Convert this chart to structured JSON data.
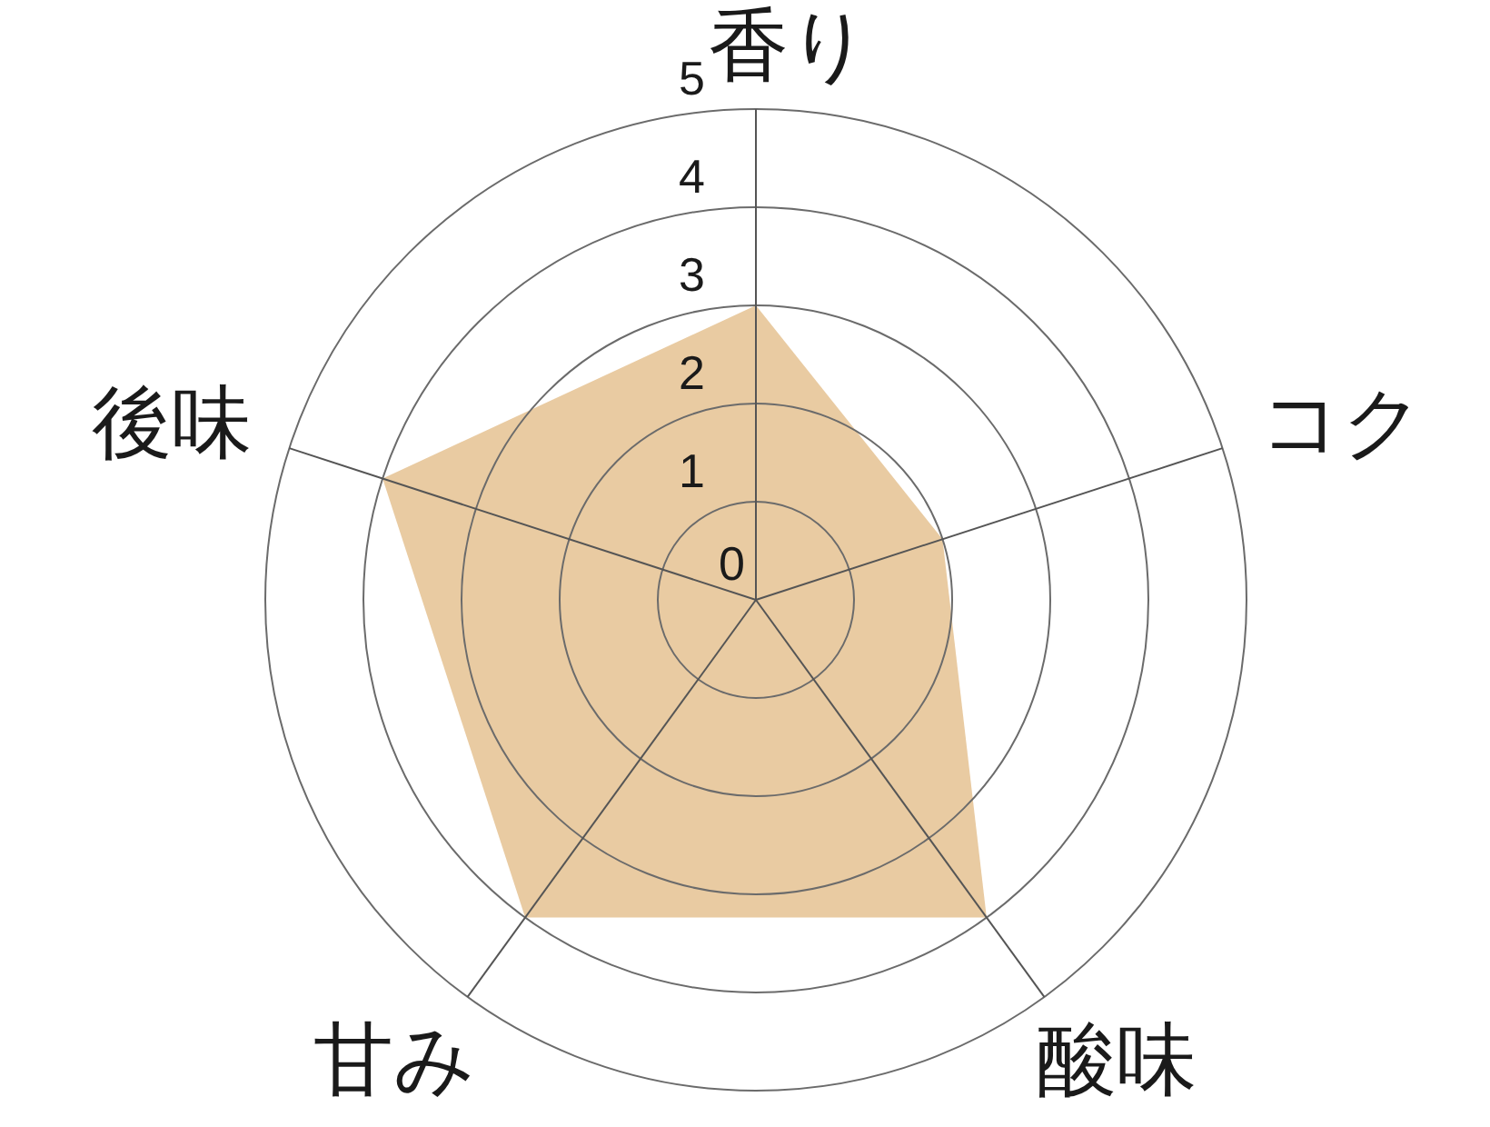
{
  "chart_data": {
    "type": "radar",
    "categories": [
      "香り",
      "コク",
      "酸味",
      "甘み",
      "後味"
    ],
    "series": [
      {
        "color": "#e9cba2",
        "values": [
          3,
          2,
          4,
          4,
          4
        ]
      }
    ],
    "ylim": [
      0,
      5
    ],
    "yticks": [
      0,
      1,
      2,
      3,
      4,
      5
    ],
    "grid": true
  }
}
